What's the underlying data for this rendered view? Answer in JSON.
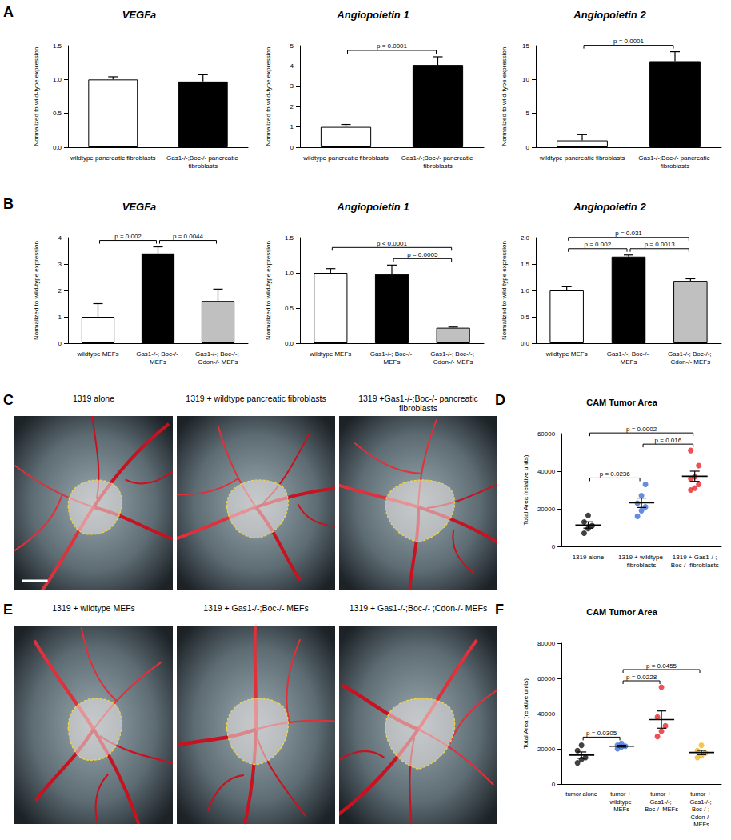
{
  "chart_data": [
    {
      "panel": "A",
      "type": "bar",
      "title": "VEGFa",
      "ylabel": "Normalized to wild-type expression",
      "categories": [
        "wildtype pancreatic fibroblasts",
        "Gas1-/-;Boc-/- pancreatic fibroblasts"
      ],
      "values": [
        1.0,
        0.97
      ],
      "errors": [
        0.04,
        0.1
      ],
      "colors": [
        "#ffffff",
        "#000000"
      ],
      "ylim": [
        0,
        1.5
      ],
      "yticks": [
        {
          "value": 0,
          "label": "0.0"
        },
        {
          "value": 0.5,
          "label": "0.5"
        },
        {
          "value": 1,
          "label": "1.0"
        },
        {
          "value": 1.5,
          "label": "1.5"
        }
      ]
    },
    {
      "type": "bar",
      "title": "Angiopoietin 1",
      "ylabel": "Normalized to wild-type expression",
      "categories": [
        "wildtype pancreatic fibroblasts",
        "Gas1-/-;Boc-/- pancreatic fibroblasts"
      ],
      "values": [
        1.0,
        4.05
      ],
      "errors": [
        0.12,
        0.4
      ],
      "colors": [
        "#ffffff",
        "#000000"
      ],
      "ylim": [
        0,
        5
      ],
      "yticks": [
        0,
        1,
        2,
        3,
        4,
        5
      ],
      "annotations": [
        {
          "between": [
            0,
            1
          ],
          "text": "p = 0.0001"
        }
      ]
    },
    {
      "type": "bar",
      "title": "Angiopoietin 2",
      "ylabel": "Normalized to wild-type expression",
      "categories": [
        "wildtype pancreatic fibroblasts",
        "Gas1-/-;Boc-/- pancreatic fibroblasts"
      ],
      "values": [
        1.0,
        12.7
      ],
      "errors": [
        0.85,
        1.4
      ],
      "colors": [
        "#ffffff",
        "#000000"
      ],
      "ylim": [
        0,
        15
      ],
      "yticks": [
        0,
        5,
        10,
        15
      ],
      "annotations": [
        {
          "between": [
            0,
            1
          ],
          "text": "p = 0.0001"
        }
      ]
    },
    {
      "panel": "B",
      "type": "bar",
      "title": "VEGFa",
      "ylabel": "Normalized to wild-type expression",
      "categories": [
        "wildtype MEFs",
        "Gas1-/-; Boc-/- MEFs",
        "Gas1-/-; Boc-/-; Cdon-/- MEFs"
      ],
      "values": [
        1.0,
        3.4,
        1.6
      ],
      "errors": [
        0.5,
        0.25,
        0.45
      ],
      "colors": [
        "#ffffff",
        "#000000",
        "#c0c0c0"
      ],
      "ylim": [
        0,
        4
      ],
      "yticks": [
        0,
        1,
        2,
        3,
        4
      ],
      "annotations": [
        {
          "between": [
            0,
            1
          ],
          "text": "p = 0.002"
        },
        {
          "between": [
            1,
            2
          ],
          "text": "p = 0.0044"
        }
      ]
    },
    {
      "type": "bar",
      "title": "Angiopoietin 1",
      "ylabel": "Normalized to wild-type expression",
      "categories": [
        "wildtype MEFs",
        "Gas1-/-; Boc-/- MEFs",
        "Gas1-/-; Boc-/-; Cdon-/- MEFs"
      ],
      "values": [
        1.0,
        0.98,
        0.22
      ],
      "errors": [
        0.06,
        0.13,
        0.01
      ],
      "colors": [
        "#ffffff",
        "#000000",
        "#c0c0c0"
      ],
      "ylim": [
        0,
        1.5
      ],
      "yticks": [
        {
          "value": 0,
          "label": "0.0"
        },
        {
          "value": 0.5,
          "label": "0.5"
        },
        {
          "value": 1,
          "label": "1.0"
        },
        {
          "value": 1.5,
          "label": "1.5"
        }
      ],
      "annotations": [
        {
          "between": [
            1,
            2
          ],
          "text": "p = 0.0005"
        },
        {
          "between": [
            0,
            2
          ],
          "text": "p < 0.0001"
        }
      ]
    },
    {
      "type": "bar",
      "title": "Angiopoietin 2",
      "ylabel": "Normalized to wild-type expression",
      "categories": [
        "wildtype MEFs",
        "Gas1-/-; Boc-/- MEFs",
        "Gas1-/-; Boc-/-; Cdon-/- MEFs"
      ],
      "values": [
        1.0,
        1.64,
        1.18
      ],
      "errors": [
        0.07,
        0.03,
        0.04
      ],
      "colors": [
        "#ffffff",
        "#000000",
        "#c0c0c0"
      ],
      "ylim": [
        0,
        2
      ],
      "yticks": [
        {
          "value": 0,
          "label": "0.0"
        },
        {
          "value": 0.5,
          "label": "0.5"
        },
        {
          "value": 1,
          "label": "1.0"
        },
        {
          "value": 1.5,
          "label": "1.5"
        },
        {
          "value": 2,
          "label": "2.0"
        }
      ],
      "annotations": [
        {
          "between": [
            0,
            1
          ],
          "text": "p = 0.002"
        },
        {
          "between": [
            1,
            2
          ],
          "text": "p = 0.0013"
        },
        {
          "between": [
            0,
            2
          ],
          "text": "p = 0.031"
        }
      ]
    },
    {
      "panel": "D",
      "type": "scatter",
      "title": "CAM Tumor Area",
      "ylabel": "Total Area (relative units)",
      "categories": [
        "1319 alone",
        "1319 + wildtype fibroblasts",
        "1319 + Gas1-/-;Boc-/- fibroblasts"
      ],
      "points": [
        [
          7000,
          9500,
          11000,
          13000,
          16500
        ],
        [
          16000,
          19000,
          21000,
          23000,
          27000,
          33000
        ],
        [
          30000,
          31000,
          33000,
          36000,
          37000,
          43000,
          51000
        ]
      ],
      "means": [
        11400,
        23200,
        37300
      ],
      "errors": [
        1700,
        2500,
        2700
      ],
      "colors": [
        "#111111",
        "#3f6fd6",
        "#e8262a"
      ],
      "ylim": [
        0,
        60000
      ],
      "yticks": [
        0,
        20000,
        40000,
        60000
      ],
      "annotations": [
        {
          "between": [
            0,
            1
          ],
          "text": "p = 0.0236"
        },
        {
          "between": [
            1,
            2
          ],
          "text": "p = 0.016"
        },
        {
          "between": [
            0,
            2
          ],
          "text": "p = 0.0002"
        }
      ]
    },
    {
      "panel": "F",
      "type": "scatter",
      "title": "CAM Tumor Area",
      "ylabel": "Total Area (relative units)",
      "categories": [
        "tumor alone",
        "tumor + wildtype MEFs",
        "tumor + Gas1-/-; Boc-/- MEFs",
        "tumor + Gas1-/-; Boc-/-; Cdon-/- MEFs"
      ],
      "points": [
        [
          12000,
          14000,
          15000,
          19000,
          22000
        ],
        [
          20000,
          21000,
          21500,
          22000,
          23000
        ],
        [
          27000,
          30000,
          33000,
          38000,
          55000
        ],
        [
          15000,
          16000,
          17500,
          19000,
          22000
        ]
      ],
      "means": [
        16400,
        21500,
        36600,
        17900
      ],
      "errors": [
        1800,
        500,
        4900,
        1200
      ],
      "colors": [
        "#111111",
        "#3f6fd6",
        "#e8262a",
        "#f5b81c"
      ],
      "ylim": [
        0,
        80000
      ],
      "yticks": [
        0,
        20000,
        40000,
        60000,
        80000
      ],
      "annotations": [
        {
          "between": [
            0,
            1
          ],
          "text": "p = 0.0305"
        },
        {
          "between": [
            1,
            2
          ],
          "text": "p = 0.0228"
        },
        {
          "between": [
            1,
            3
          ],
          "text": "p = 0.0455"
        }
      ]
    }
  ],
  "image_panels": [
    {
      "panel": "C",
      "images": [
        "1319 alone",
        "1319 + wildtype pancreatic fibroblasts",
        "1319 +Gas1-/-;Boc-/- pancreatic fibroblasts"
      ]
    },
    {
      "panel": "E",
      "images": [
        "1319 + wildtype MEFs",
        "1319 + Gas1-/-;Boc-/- MEFs",
        "1319 + Gas1-/-;Boc-/- ;Cdon-/- MEFs"
      ]
    }
  ]
}
